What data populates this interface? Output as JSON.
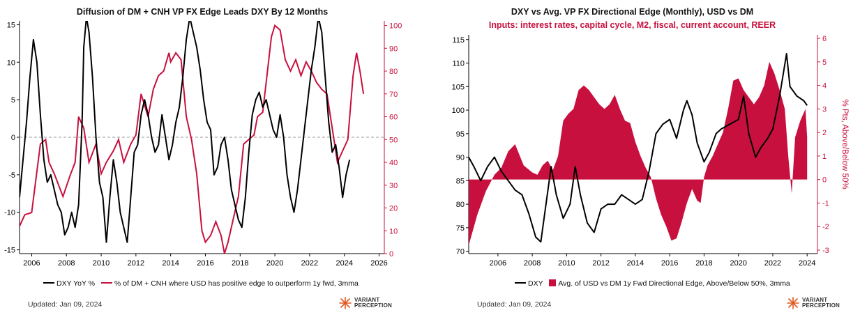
{
  "colors": {
    "dxy": "#000000",
    "accent": "#c8103e",
    "zero_line": "#999999"
  },
  "footer": {
    "updated": "Updated: Jan 09, 2024",
    "logo_line1": "VARIANT",
    "logo_line2": "PERCEPTION"
  },
  "chart_data": [
    {
      "type": "line",
      "title": "Diffusion of DM + CNH VP FX Edge Leads DXY By 12 Months",
      "x_range": [
        2005.3,
        2026.3
      ],
      "x_ticks": [
        "2006",
        "2008",
        "2010",
        "2012",
        "2014",
        "2016",
        "2018",
        "2020",
        "2022",
        "2024",
        "2026"
      ],
      "y_left": {
        "range": [
          -15.5,
          15.5
        ],
        "ticks": [
          "15",
          "10",
          "5",
          "0",
          "-5",
          "-10",
          "-15"
        ]
      },
      "y_right": {
        "range": [
          0,
          102
        ],
        "ticks": [
          "100",
          "90",
          "80",
          "70",
          "60",
          "50",
          "40",
          "30",
          "20",
          "10",
          "0"
        ]
      },
      "zero_line": "dashed",
      "legend_position": "bottom",
      "series": [
        {
          "name": "DXY YoY %",
          "axis": "left",
          "x": [
            2005.3,
            2005.5,
            2005.7,
            2005.9,
            2006.1,
            2006.3,
            2006.5,
            2006.7,
            2006.9,
            2007.1,
            2007.3,
            2007.5,
            2007.7,
            2007.9,
            2008.1,
            2008.3,
            2008.5,
            2008.7,
            2008.9,
            2009.0,
            2009.15,
            2009.3,
            2009.5,
            2009.7,
            2009.9,
            2010.1,
            2010.3,
            2010.5,
            2010.7,
            2010.9,
            2011.1,
            2011.3,
            2011.5,
            2011.7,
            2011.9,
            2012.1,
            2012.3,
            2012.5,
            2012.7,
            2012.9,
            2013.1,
            2013.3,
            2013.5,
            2013.7,
            2013.9,
            2014.1,
            2014.3,
            2014.5,
            2014.7,
            2014.9,
            2015.1,
            2015.3,
            2015.5,
            2015.7,
            2015.9,
            2016.1,
            2016.3,
            2016.5,
            2016.7,
            2016.9,
            2017.1,
            2017.3,
            2017.5,
            2017.7,
            2017.9,
            2018.1,
            2018.3,
            2018.5,
            2018.7,
            2018.9,
            2019.1,
            2019.3,
            2019.5,
            2019.7,
            2019.9,
            2020.1,
            2020.3,
            2020.5,
            2020.7,
            2020.9,
            2021.1,
            2021.3,
            2021.5,
            2021.7,
            2021.9,
            2022.1,
            2022.3,
            2022.5,
            2022.7,
            2022.9,
            2023.1,
            2023.3,
            2023.5,
            2023.7,
            2023.9,
            2024.1,
            2024.3
          ],
          "values": [
            -8,
            -3,
            2,
            8,
            13,
            10,
            3,
            -3,
            -6,
            -5,
            -7,
            -9,
            -10,
            -13,
            -12,
            -10,
            -12,
            -9,
            2,
            12,
            16,
            14,
            8,
            0,
            -6,
            -8,
            -14,
            -8,
            -3,
            -6,
            -10,
            -12,
            -14,
            -8,
            -2,
            -1,
            3,
            5,
            3,
            0,
            -2,
            -1,
            3,
            0,
            -3,
            -1,
            2,
            4,
            8,
            13,
            16,
            14,
            12,
            9,
            5,
            2,
            1,
            -5,
            -4,
            -1,
            0,
            -3,
            -7,
            -9,
            -11,
            -12,
            -8,
            -2,
            3,
            5,
            6,
            4,
            5,
            3,
            1,
            0,
            3,
            0,
            -5,
            -8,
            -10,
            -7,
            -3,
            1,
            5,
            9,
            12,
            16,
            14,
            8,
            2,
            -2,
            -1,
            -4,
            -8,
            -5,
            -3
          ]
        },
        {
          "name": "% of DM + CNH where USD has positive edge to outperform 1y fwd, 3mma",
          "axis": "right",
          "x": [
            2005.3,
            2005.6,
            2006.0,
            2006.5,
            2006.8,
            2007.0,
            2007.3,
            2007.8,
            2008.2,
            2008.5,
            2008.7,
            2009.0,
            2009.3,
            2009.7,
            2010.0,
            2010.3,
            2010.7,
            2011.0,
            2011.3,
            2011.7,
            2012.0,
            2012.3,
            2012.7,
            2013.0,
            2013.3,
            2013.6,
            2013.9,
            2014.0,
            2014.3,
            2014.6,
            2014.9,
            2015.2,
            2015.5,
            2015.8,
            2016.0,
            2016.3,
            2016.6,
            2016.9,
            2017.1,
            2017.3,
            2017.6,
            2017.9,
            2018.2,
            2018.5,
            2018.8,
            2019.0,
            2019.3,
            2019.5,
            2019.8,
            2020.0,
            2020.3,
            2020.6,
            2020.9,
            2021.2,
            2021.5,
            2021.8,
            2022.1,
            2022.4,
            2022.7,
            2023.0,
            2023.3,
            2023.6,
            2023.9,
            2024.2,
            2024.5,
            2024.7,
            2024.9,
            2025.1
          ],
          "values": [
            12,
            17,
            18,
            48,
            50,
            40,
            35,
            25,
            34,
            40,
            60,
            55,
            40,
            48,
            35,
            40,
            45,
            50,
            40,
            48,
            52,
            70,
            60,
            72,
            78,
            80,
            88,
            84,
            88,
            85,
            60,
            50,
            35,
            10,
            5,
            8,
            14,
            8,
            0,
            5,
            15,
            25,
            48,
            50,
            52,
            60,
            62,
            75,
            95,
            100,
            98,
            85,
            80,
            85,
            78,
            84,
            80,
            75,
            72,
            70,
            55,
            40,
            45,
            50,
            78,
            88,
            80,
            70
          ]
        }
      ]
    },
    {
      "type": "area",
      "title": "DXY vs Avg. VP FX Directional Edge (Monthly), USD vs DM",
      "subtitle": "Inputs: interest rates, capital cycle, M2, fiscal, current account, REER",
      "x_range": [
        2004.3,
        2024.6
      ],
      "x_ticks": [
        "2006",
        "2008",
        "2010",
        "2012",
        "2014",
        "2016",
        "2018",
        "2020",
        "2022",
        "2024"
      ],
      "y_left": {
        "range": [
          69.5,
          116
        ],
        "ticks": [
          "115",
          "110",
          "105",
          "100",
          "95",
          "90",
          "85",
          "80",
          "75",
          "70"
        ]
      },
      "y_right": {
        "range": [
          -3.15,
          6.15
        ],
        "ticks": [
          "6",
          "5",
          "4",
          "3",
          "2",
          "1",
          "0",
          "-1",
          "-2",
          "-3"
        ],
        "label": "% Pts, Above/Below 50%"
      },
      "legend_position": "bottom",
      "series": [
        {
          "name": "DXY",
          "axis": "left",
          "x": [
            2004.3,
            2004.6,
            2005.0,
            2005.4,
            2005.8,
            2006.2,
            2006.6,
            2007.0,
            2007.4,
            2007.8,
            2008.2,
            2008.5,
            2008.8,
            2009.1,
            2009.4,
            2009.8,
            2010.2,
            2010.5,
            2010.8,
            2011.2,
            2011.6,
            2012.0,
            2012.4,
            2012.8,
            2013.2,
            2013.6,
            2014.0,
            2014.4,
            2014.8,
            2015.2,
            2015.6,
            2016.0,
            2016.4,
            2016.8,
            2017.0,
            2017.3,
            2017.6,
            2018.0,
            2018.3,
            2018.7,
            2019.0,
            2019.5,
            2020.0,
            2020.3,
            2020.6,
            2021.0,
            2021.3,
            2021.7,
            2022.0,
            2022.4,
            2022.8,
            2023.0,
            2023.4,
            2023.8,
            2024.0
          ],
          "values": [
            90,
            88,
            85,
            88,
            90,
            87,
            85,
            83,
            82,
            78,
            73,
            72,
            80,
            88,
            82,
            77,
            80,
            88,
            82,
            76,
            74,
            79,
            80,
            80,
            82,
            81,
            80,
            81,
            87,
            95,
            97,
            98,
            94,
            100,
            102,
            99,
            93,
            89,
            91,
            95,
            96,
            97,
            98,
            103,
            95,
            90,
            92,
            94,
            96,
            103,
            112,
            105,
            103,
            102,
            101
          ]
        },
        {
          "name": "Avg. of USD vs DM 1y Fwd Directional Edge, Above/Below 50%, 3mma",
          "axis": "right",
          "x": [
            2004.3,
            2004.8,
            2005.3,
            2005.8,
            2006.2,
            2006.6,
            2007.0,
            2007.5,
            2008.0,
            2008.3,
            2008.6,
            2008.9,
            2009.2,
            2009.5,
            2009.8,
            2010.1,
            2010.4,
            2010.7,
            2011.0,
            2011.3,
            2011.6,
            2011.9,
            2012.2,
            2012.5,
            2012.8,
            2013.1,
            2013.4,
            2013.7,
            2014.0,
            2014.3,
            2014.6,
            2014.9,
            2015.2,
            2015.5,
            2015.8,
            2016.1,
            2016.4,
            2016.7,
            2017.0,
            2017.3,
            2017.6,
            2017.8,
            2018.0,
            2018.2,
            2018.5,
            2018.8,
            2019.1,
            2019.4,
            2019.7,
            2020.0,
            2020.3,
            2020.6,
            2020.9,
            2021.2,
            2021.5,
            2021.8,
            2022.1,
            2022.4,
            2022.7,
            2022.9,
            2023.1,
            2023.3,
            2023.6,
            2023.9,
            2024.0
          ],
          "values": [
            -2.8,
            -1.5,
            -0.5,
            0.2,
            0.5,
            1.2,
            1.5,
            0.6,
            0.3,
            0.2,
            0.6,
            0.8,
            0.4,
            1.0,
            2.5,
            2.8,
            3.0,
            3.8,
            4.0,
            3.8,
            3.5,
            3.2,
            3.0,
            3.2,
            3.6,
            3.0,
            2.5,
            2.4,
            1.6,
            1.0,
            0.5,
            0.1,
            -0.8,
            -1.5,
            -2.0,
            -2.6,
            -2.5,
            -1.8,
            -1.0,
            -0.4,
            -0.9,
            -1.0,
            0.1,
            0.6,
            1.0,
            1.5,
            2.0,
            3.0,
            4.2,
            4.3,
            3.8,
            3.5,
            3.2,
            3.5,
            4.0,
            5.0,
            4.5,
            3.8,
            3.0,
            1.0,
            -0.6,
            1.8,
            2.5,
            3.0,
            1.8
          ]
        }
      ]
    }
  ]
}
